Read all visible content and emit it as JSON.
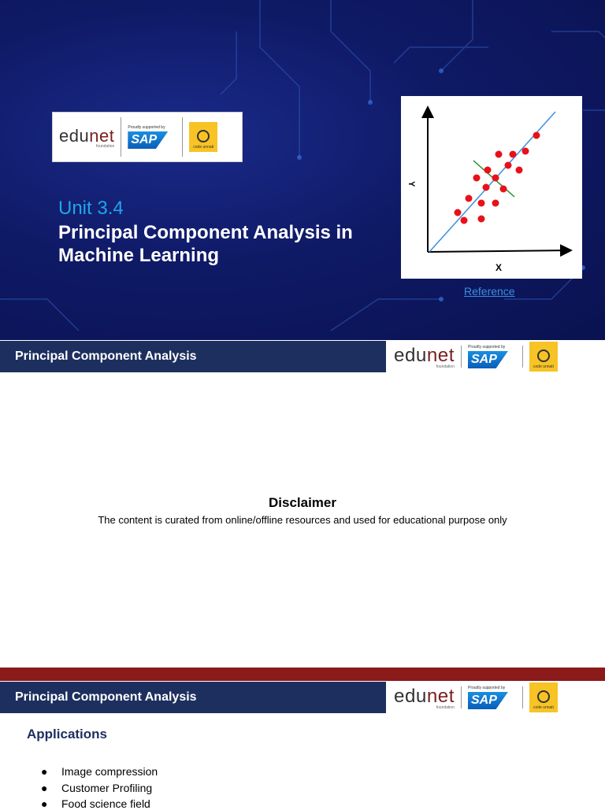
{
  "logo": {
    "brand_left": "edu",
    "brand_right": "net",
    "brand_sub": "foundation",
    "support": "Proudly supported by",
    "sap": "SAP",
    "partner": "code unnati"
  },
  "cover": {
    "unit": "Unit 3.4",
    "title_line1": "Principal Component Analysis in",
    "title_line2": "Machine Learning",
    "figure_y_label": "Y",
    "figure_x_label": "X",
    "reference": "Reference"
  },
  "slide2": {
    "header": "Principal Component Analysis",
    "heading": "Disclaimer",
    "text": "The content is curated from online/offline resources and used for educational purpose only"
  },
  "slide3": {
    "header": "Principal Component Analysis",
    "heading": "Applications",
    "items": [
      "Image compression",
      "Customer Profiling",
      "Food science field"
    ]
  }
}
